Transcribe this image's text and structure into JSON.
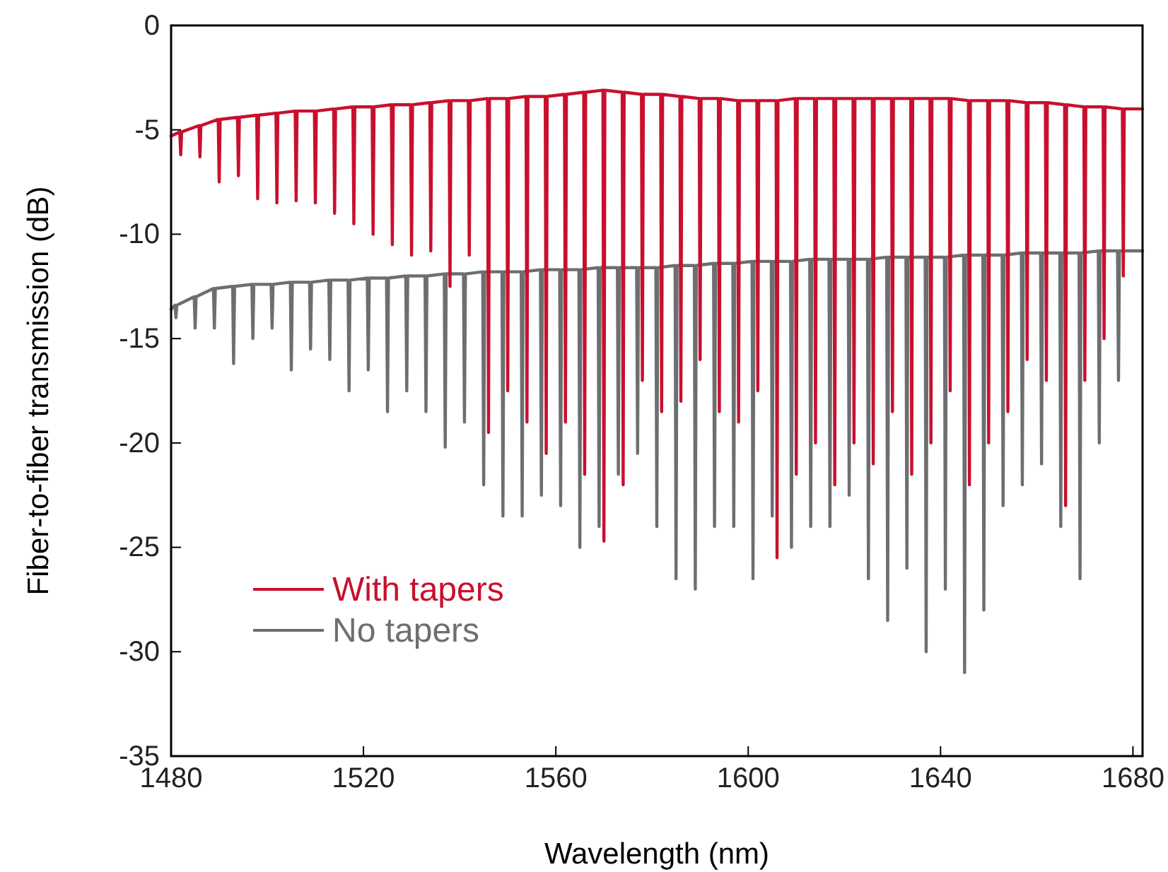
{
  "chart_data": {
    "type": "line",
    "xlabel": "Wavelength (nm)",
    "ylabel": "Fiber-to-fiber transmission (dB)",
    "xlim": [
      1480,
      1682
    ],
    "xticks": [
      1480,
      1520,
      1560,
      1600,
      1640,
      1680
    ],
    "ylim": [
      -35,
      0
    ],
    "yticks": [
      -35,
      -30,
      -25,
      -20,
      -15,
      -10,
      -5,
      0
    ],
    "grid": false,
    "legend": "bottom left",
    "line_style": "solid",
    "marker": "none",
    "series": [
      {
        "name": "With tapers",
        "color": "#c8102e",
        "x": [
          1480,
          1481.8,
          1482,
          1482.2,
          1485.8,
          1486,
          1486.2,
          1489.8,
          1490,
          1490.2,
          1493.8,
          1494,
          1494.2,
          1497.8,
          1498,
          1498.2,
          1501.8,
          1502,
          1502.2,
          1505.8,
          1506,
          1506.2,
          1509.8,
          1510,
          1510.2,
          1513.8,
          1514,
          1514.2,
          1517.8,
          1518,
          1518.2,
          1521.8,
          1522,
          1522.2,
          1525.8,
          1526,
          1526.2,
          1529.8,
          1530,
          1530.2,
          1533.8,
          1534,
          1534.2,
          1537.8,
          1538,
          1538.2,
          1541.8,
          1542,
          1542.2,
          1545.8,
          1546,
          1546.2,
          1549.8,
          1550,
          1550.2,
          1553.8,
          1554,
          1554.2,
          1557.8,
          1558,
          1558.2,
          1561.8,
          1562,
          1562.2,
          1565.8,
          1566,
          1566.2,
          1569.8,
          1570,
          1570.2,
          1573.8,
          1574,
          1574.2,
          1577.8,
          1578,
          1578.2,
          1581.8,
          1582,
          1582.2,
          1585.8,
          1586,
          1586.2,
          1589.8,
          1590,
          1590.2,
          1593.8,
          1594,
          1594.2,
          1597.8,
          1598,
          1598.2,
          1601.8,
          1602,
          1602.2,
          1605.8,
          1606,
          1606.2,
          1609.8,
          1610,
          1610.2,
          1613.8,
          1614,
          1614.2,
          1617.8,
          1618,
          1618.2,
          1621.8,
          1622,
          1622.2,
          1625.8,
          1626,
          1626.2,
          1629.8,
          1630,
          1630.2,
          1633.8,
          1634,
          1634.2,
          1637.8,
          1638,
          1638.2,
          1641.8,
          1642,
          1642.2,
          1645.8,
          1646,
          1646.2,
          1649.8,
          1650,
          1650.2,
          1653.8,
          1654,
          1654.2,
          1657.8,
          1658,
          1658.2,
          1661.8,
          1662,
          1662.2,
          1665.8,
          1666,
          1666.2,
          1669.8,
          1670,
          1670.2,
          1673.8,
          1674,
          1674.2,
          1677.8,
          1678,
          1678.2,
          1682
        ],
        "values": [
          -5.3,
          -5.1,
          -6.2,
          -5.1,
          -4.8,
          -6.3,
          -4.8,
          -4.5,
          -7.5,
          -4.5,
          -4.4,
          -7.2,
          -4.4,
          -4.3,
          -8.3,
          -4.3,
          -4.2,
          -8.5,
          -4.2,
          -4.1,
          -8.4,
          -4.1,
          -4.1,
          -8.5,
          -4.1,
          -4.0,
          -9,
          -4.0,
          -3.9,
          -9.5,
          -3.9,
          -3.9,
          -10,
          -3.9,
          -3.8,
          -10.5,
          -3.8,
          -3.8,
          -11,
          -3.8,
          -3.7,
          -10.8,
          -3.7,
          -3.6,
          -12.5,
          -3.6,
          -3.6,
          -11,
          -3.6,
          -3.5,
          -19.5,
          -3.5,
          -3.5,
          -17.5,
          -3.5,
          -3.4,
          -19,
          -3.4,
          -3.4,
          -20.5,
          -3.4,
          -3.3,
          -19,
          -3.3,
          -3.2,
          -21.5,
          -3.2,
          -3.1,
          -24.7,
          -3.1,
          -3.2,
          -22,
          -3.2,
          -3.3,
          -17,
          -3.3,
          -3.3,
          -18.5,
          -3.3,
          -3.4,
          -18,
          -3.4,
          -3.5,
          -16,
          -3.5,
          -3.5,
          -18.5,
          -3.5,
          -3.6,
          -19,
          -3.6,
          -3.6,
          -17.5,
          -3.6,
          -3.6,
          -25.5,
          -3.6,
          -3.5,
          -21.5,
          -3.5,
          -3.5,
          -20,
          -3.5,
          -3.5,
          -22,
          -3.5,
          -3.5,
          -20,
          -3.5,
          -3.5,
          -21,
          -3.5,
          -3.5,
          -18.5,
          -3.5,
          -3.5,
          -21.5,
          -3.5,
          -3.5,
          -20,
          -3.5,
          -3.5,
          -17.5,
          -3.5,
          -3.6,
          -22,
          -3.6,
          -3.6,
          -20,
          -3.6,
          -3.6,
          -18.5,
          -3.6,
          -3.7,
          -16,
          -3.7,
          -3.7,
          -17,
          -3.7,
          -3.8,
          -23,
          -3.8,
          -3.9,
          -17,
          -3.9,
          -3.9,
          -15,
          -3.9,
          -4.0,
          -12,
          -4.0,
          -4.0
        ]
      },
      {
        "name": "No tapers",
        "color": "#6d6e71",
        "x": [
          1480,
          1480.8,
          1481,
          1481.2,
          1484.8,
          1485,
          1485.2,
          1488.8,
          1489,
          1489.2,
          1492.8,
          1493,
          1493.2,
          1496.8,
          1497,
          1497.2,
          1500.8,
          1501,
          1501.2,
          1504.8,
          1505,
          1505.2,
          1508.8,
          1509,
          1509.2,
          1512.8,
          1513,
          1513.2,
          1516.8,
          1517,
          1517.2,
          1520.8,
          1521,
          1521.2,
          1524.8,
          1525,
          1525.2,
          1528.8,
          1529,
          1529.2,
          1532.8,
          1533,
          1533.2,
          1536.8,
          1537,
          1537.2,
          1540.8,
          1541,
          1541.2,
          1544.8,
          1545,
          1545.2,
          1548.8,
          1549,
          1549.2,
          1552.8,
          1553,
          1553.2,
          1556.8,
          1557,
          1557.2,
          1560.8,
          1561,
          1561.2,
          1564.8,
          1565,
          1565.2,
          1568.8,
          1569,
          1569.2,
          1572.8,
          1573,
          1573.2,
          1576.8,
          1577,
          1577.2,
          1580.8,
          1581,
          1581.2,
          1584.8,
          1585,
          1585.2,
          1588.8,
          1589,
          1589.2,
          1592.8,
          1593,
          1593.2,
          1596.8,
          1597,
          1597.2,
          1600.8,
          1601,
          1601.2,
          1604.8,
          1605,
          1605.2,
          1608.8,
          1609,
          1609.2,
          1612.8,
          1613,
          1613.2,
          1616.8,
          1617,
          1617.2,
          1620.8,
          1621,
          1621.2,
          1624.8,
          1625,
          1625.2,
          1628.8,
          1629,
          1629.2,
          1632.8,
          1633,
          1633.2,
          1636.8,
          1637,
          1637.2,
          1640.8,
          1641,
          1641.2,
          1644.8,
          1645,
          1645.2,
          1648.8,
          1649,
          1649.2,
          1652.8,
          1653,
          1653.2,
          1656.8,
          1657,
          1657.2,
          1660.8,
          1661,
          1661.2,
          1664.8,
          1665,
          1665.2,
          1668.8,
          1669,
          1669.2,
          1672.8,
          1673,
          1673.2,
          1676.8,
          1677,
          1677.2,
          1682
        ],
        "values": [
          -13.6,
          -13.4,
          -14,
          -13.4,
          -13.0,
          -14.5,
          -13.0,
          -12.6,
          -14.5,
          -12.6,
          -12.5,
          -16.2,
          -12.5,
          -12.4,
          -15,
          -12.4,
          -12.4,
          -14.5,
          -12.4,
          -12.3,
          -16.5,
          -12.3,
          -12.3,
          -15.5,
          -12.3,
          -12.2,
          -16,
          -12.2,
          -12.2,
          -17.5,
          -12.2,
          -12.1,
          -16.5,
          -12.1,
          -12.1,
          -18.5,
          -12.1,
          -12.0,
          -17.5,
          -12.0,
          -12.0,
          -18.5,
          -12.0,
          -11.9,
          -20.2,
          -11.9,
          -11.9,
          -19,
          -11.9,
          -11.8,
          -22,
          -11.8,
          -11.8,
          -23.5,
          -11.8,
          -11.8,
          -23.5,
          -11.8,
          -11.7,
          -22.5,
          -11.7,
          -11.7,
          -23,
          -11.7,
          -11.7,
          -25,
          -11.7,
          -11.6,
          -24,
          -11.6,
          -11.6,
          -21.5,
          -11.6,
          -11.6,
          -20.5,
          -11.6,
          -11.6,
          -24,
          -11.6,
          -11.5,
          -26.5,
          -11.5,
          -11.5,
          -27,
          -11.5,
          -11.4,
          -24,
          -11.4,
          -11.4,
          -24,
          -11.4,
          -11.3,
          -26.5,
          -11.3,
          -11.3,
          -23.5,
          -11.3,
          -11.3,
          -25,
          -11.3,
          -11.2,
          -24,
          -11.2,
          -11.2,
          -24,
          -11.2,
          -11.2,
          -22.5,
          -11.2,
          -11.2,
          -26.5,
          -11.2,
          -11.1,
          -28.5,
          -11.1,
          -11.1,
          -26,
          -11.1,
          -11.1,
          -30,
          -11.1,
          -11.1,
          -27,
          -11.1,
          -11.0,
          -31,
          -11.0,
          -11.0,
          -28,
          -11.0,
          -11.0,
          -23,
          -11.0,
          -10.9,
          -22,
          -10.9,
          -10.9,
          -21,
          -10.9,
          -10.9,
          -24,
          -10.9,
          -10.9,
          -26.5,
          -10.9,
          -10.8,
          -20,
          -10.8,
          -10.8,
          -17,
          -10.8,
          -10.8
        ]
      }
    ]
  }
}
